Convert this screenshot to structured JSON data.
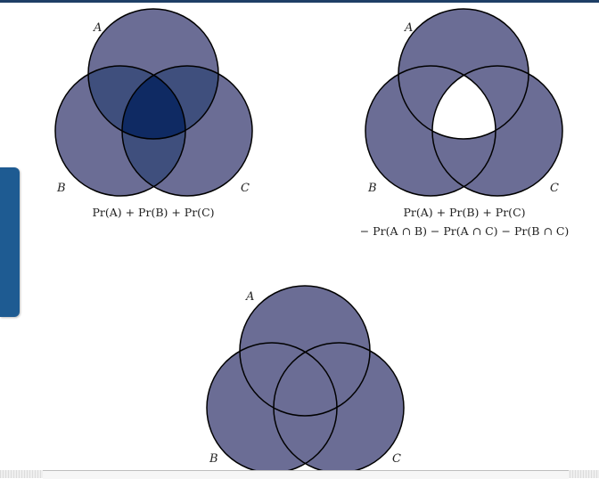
{
  "side_tab": {
    "label": ""
  },
  "colors": {
    "fill": "#6b6d95",
    "overlap2": "#3f4f7d",
    "overlap3": "#0f2a63",
    "stroke": "#000000"
  },
  "diagrams": [
    {
      "labels": {
        "a": "A",
        "b": "B",
        "c": "C"
      },
      "formula_line1": "Pr(A) + Pr(B) + Pr(C)",
      "formula_line2": ""
    },
    {
      "labels": {
        "a": "A",
        "b": "B",
        "c": "C"
      },
      "formula_line1": "Pr(A) + Pr(B) + Pr(C)",
      "formula_line2": "− Pr(A ∩ B) − Pr(A ∩ C) − Pr(B ∩ C)"
    },
    {
      "labels": {
        "a": "A",
        "b": "B",
        "c": "C"
      },
      "formula_line1": "",
      "formula_line2": ""
    }
  ]
}
